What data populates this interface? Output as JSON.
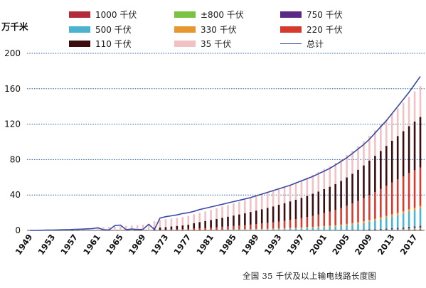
{
  "chart_data": {
    "type": "bar",
    "ylabel": "万千米",
    "caption": "全国 35 千伏及以上输电线路长度图",
    "ylim": [
      0,
      200
    ],
    "yticks": [
      "0",
      "40",
      "80",
      "120",
      "160",
      "200"
    ],
    "grid": "dotted horizontal at 200, 160, 120, 80, 40",
    "legend_placement": "top",
    "x_tick_labels": [
      "1949",
      "1953",
      "1957",
      "1961",
      "1965",
      "1969",
      "1973",
      "1977",
      "1981",
      "1985",
      "1989",
      "1993",
      "1997",
      "2001",
      "2005",
      "2009",
      "2013",
      "2017"
    ],
    "years": [
      1949,
      1950,
      1951,
      1952,
      1953,
      1954,
      1955,
      1956,
      1957,
      1958,
      1959,
      1960,
      1961,
      1962,
      1963,
      1964,
      1965,
      1966,
      1967,
      1968,
      1969,
      1970,
      1971,
      1972,
      1973,
      1974,
      1975,
      1976,
      1977,
      1978,
      1979,
      1980,
      1981,
      1982,
      1983,
      1984,
      1985,
      1986,
      1987,
      1988,
      1989,
      1990,
      1991,
      1992,
      1993,
      1994,
      1995,
      1996,
      1997,
      1998,
      1999,
      2000,
      2001,
      2002,
      2003,
      2004,
      2005,
      2006,
      2007,
      2008,
      2009,
      2010,
      2011,
      2012,
      2013,
      2014,
      2015,
      2016,
      2017,
      2018
    ],
    "series": [
      {
        "name": "1000 千伏",
        "color": "#b32b3a",
        "values": [
          0,
          0,
          0,
          0,
          0,
          0,
          0,
          0,
          0,
          0,
          0,
          0,
          0,
          0,
          0,
          0,
          0,
          0,
          0,
          0,
          0,
          0,
          0,
          0,
          0,
          0,
          0,
          0,
          0,
          0,
          0,
          0,
          0,
          0,
          0,
          0,
          0,
          0,
          0,
          0,
          0,
          0,
          0,
          0,
          0,
          0,
          0,
          0,
          0,
          0,
          0,
          0,
          0,
          0,
          0,
          0,
          0,
          0,
          0,
          0,
          0.06,
          0.06,
          0.1,
          0.2,
          0.3,
          0.4,
          0.5,
          0.8,
          1.0,
          1.2
        ]
      },
      {
        "name": "±800 千伏",
        "color": "#7cc242",
        "values": [
          0,
          0,
          0,
          0,
          0,
          0,
          0,
          0,
          0,
          0,
          0,
          0,
          0,
          0,
          0,
          0,
          0,
          0,
          0,
          0,
          0,
          0,
          0,
          0,
          0,
          0,
          0,
          0,
          0,
          0,
          0,
          0,
          0,
          0,
          0,
          0,
          0,
          0,
          0,
          0,
          0,
          0,
          0,
          0,
          0,
          0,
          0,
          0,
          0,
          0,
          0,
          0,
          0,
          0,
          0,
          0,
          0,
          0,
          0,
          0,
          0.2,
          0.3,
          0.4,
          0.6,
          0.8,
          0.9,
          1.0,
          1.3,
          1.6,
          1.8
        ]
      },
      {
        "name": "750 千伏",
        "color": "#5b2a86",
        "values": [
          0,
          0,
          0,
          0,
          0,
          0,
          0,
          0,
          0,
          0,
          0,
          0,
          0,
          0,
          0,
          0,
          0,
          0,
          0,
          0,
          0,
          0,
          0,
          0,
          0,
          0,
          0,
          0,
          0,
          0,
          0,
          0,
          0,
          0,
          0,
          0,
          0,
          0,
          0,
          0,
          0,
          0,
          0,
          0,
          0,
          0,
          0,
          0,
          0,
          0,
          0,
          0,
          0,
          0,
          0,
          0.05,
          0.1,
          0.3,
          0.5,
          0.7,
          0.9,
          1.0,
          1.2,
          1.4,
          1.5,
          1.6,
          1.8,
          2.0,
          2.1,
          2.2
        ]
      },
      {
        "name": "500 千伏",
        "color": "#4bb3cf",
        "values": [
          0,
          0,
          0,
          0,
          0,
          0,
          0,
          0,
          0,
          0,
          0,
          0,
          0,
          0,
          0,
          0,
          0,
          0,
          0,
          0,
          0,
          0,
          0,
          0,
          0,
          0,
          0,
          0,
          0,
          0,
          0,
          0.1,
          0.1,
          0.2,
          0.3,
          0.4,
          0.5,
          0.6,
          0.7,
          0.8,
          0.9,
          1.0,
          1.1,
          1.2,
          1.4,
          1.6,
          1.8,
          2.0,
          2.2,
          2.5,
          2.8,
          3.1,
          3.5,
          3.9,
          4.3,
          4.8,
          5.4,
          6.0,
          6.8,
          7.6,
          8.6,
          9.6,
          10.7,
          11.8,
          13.0,
          14.2,
          15.5,
          16.8,
          18.0,
          19.3
        ]
      },
      {
        "name": "330 千伏",
        "color": "#e8962e",
        "values": [
          0,
          0,
          0,
          0,
          0,
          0,
          0,
          0,
          0,
          0,
          0,
          0,
          0,
          0,
          0,
          0,
          0,
          0,
          0,
          0,
          0,
          0,
          0,
          0.1,
          0.1,
          0.2,
          0.2,
          0.2,
          0.2,
          0.3,
          0.3,
          0.3,
          0.4,
          0.4,
          0.5,
          0.5,
          0.6,
          0.6,
          0.7,
          0.7,
          0.8,
          0.8,
          0.9,
          0.9,
          1.0,
          1.0,
          1.1,
          1.1,
          1.2,
          1.3,
          1.3,
          1.4,
          1.5,
          1.5,
          1.6,
          1.7,
          1.8,
          1.9,
          2.0,
          2.1,
          2.2,
          2.3,
          2.4,
          2.5,
          2.6,
          2.7,
          2.8,
          2.9,
          3.0,
          3.1
        ]
      },
      {
        "name": "220 千伏",
        "color": "#d63a2f",
        "values": [
          0,
          0,
          0,
          0,
          0,
          0,
          0,
          0,
          0,
          0,
          0,
          0,
          0,
          0,
          0,
          0,
          0,
          0,
          0,
          0,
          0,
          0,
          0.4,
          0.5,
          0.6,
          0.8,
          1.0,
          1.2,
          1.5,
          1.8,
          2.1,
          2.4,
          2.7,
          3.0,
          3.3,
          3.6,
          3.9,
          4.2,
          4.6,
          5.0,
          5.5,
          6.0,
          6.5,
          7.0,
          7.6,
          8.2,
          8.9,
          9.6,
          10.4,
          11.3,
          12.3,
          13.4,
          14.6,
          15.9,
          17.3,
          18.8,
          20.5,
          22.2,
          24.0,
          26.0,
          28.0,
          30.0,
          32.0,
          34.0,
          36.0,
          37.8,
          39.5,
          41.0,
          42.3,
          43.5
        ]
      },
      {
        "name": "110 千伏",
        "color": "#3b0c10",
        "values": [
          0,
          0,
          0,
          0,
          0,
          0,
          0,
          0,
          0,
          0,
          0,
          0,
          0,
          0,
          0,
          0,
          0,
          0,
          0,
          0,
          0,
          0,
          2.5,
          2.8,
          3.1,
          3.4,
          3.8,
          4.2,
          4.8,
          6.0,
          7.0,
          7.8,
          8.6,
          9.4,
          10.2,
          11.0,
          11.8,
          12.6,
          13.4,
          14.3,
          15.2,
          16.1,
          17.0,
          18.0,
          19.0,
          20.0,
          21.0,
          22.0,
          23.0,
          24.0,
          25.0,
          26.0,
          27.0,
          28.0,
          29.2,
          30.5,
          32.0,
          33.6,
          35.2,
          37.0,
          39.0,
          41.0,
          43.0,
          45.0,
          47.0,
          49.0,
          51.0,
          53.0,
          55.0,
          57.0
        ]
      },
      {
        "name": "35 千伏",
        "color": "#f2c1c3",
        "values": [
          0,
          0,
          0.2,
          0.4,
          0.6,
          0.9,
          1.2,
          1.4,
          1.7,
          2.0,
          2.4,
          2.8,
          3.2,
          3.6,
          4.0,
          4.4,
          4.8,
          5.2,
          5.6,
          6.0,
          6.5,
          7.0,
          7.6,
          8.2,
          8.8,
          9.0,
          9.2,
          9.5,
          9.8,
          10.1,
          10.5,
          10.8,
          11.4,
          12.0,
          12.6,
          13.1,
          13.7,
          14.2,
          14.8,
          15.3,
          15.8,
          16.3,
          16.8,
          17.3,
          17.8,
          18.3,
          18.8,
          19.4,
          20.0,
          20.7,
          21.4,
          22.1,
          22.7,
          23.3,
          23.9,
          24.6,
          25.3,
          26.0,
          26.7,
          27.4,
          28.0,
          28.6,
          29.2,
          29.8,
          30.4,
          31.0,
          32.0,
          33.0,
          34.0,
          35.0
        ]
      }
    ],
    "total": {
      "name": "总计",
      "color": "#3a4aa6",
      "values": [
        0,
        0,
        0.2,
        0.3,
        0.4,
        0.6,
        0.8,
        0.9,
        1.1,
        1.4,
        1.7,
        2.0,
        3.0,
        0.8,
        0.5,
        5.5,
        6.0,
        0.8,
        1.5,
        1.0,
        1.2,
        7.0,
        1.0,
        14.0,
        15.5,
        16.5,
        17.5,
        19.0,
        20.0,
        21.5,
        23.5,
        25.0,
        26.5,
        28.0,
        29.5,
        31.0,
        32.5,
        34.0,
        35.5,
        37.0,
        39.0,
        41.0,
        43.0,
        45.0,
        47.0,
        49.0,
        51.0,
        53.5,
        56.0,
        58.5,
        61.0,
        64.0,
        67.0,
        70.0,
        74.0,
        78.0,
        82.0,
        87.0,
        92.0,
        97.0,
        103.0,
        110.0,
        117.0,
        124.0,
        132.0,
        140.0,
        148.0,
        156.0,
        165.0,
        174.0
      ]
    }
  }
}
